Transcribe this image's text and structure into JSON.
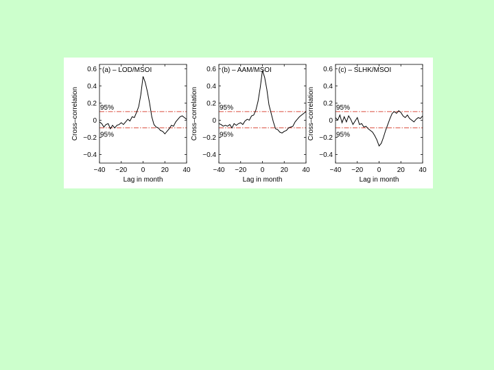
{
  "figure": {
    "background_color": "#ccffcc",
    "panel_color": "#ffffff",
    "line_color": "#000000",
    "confidence_color": "#d94a3a"
  },
  "chart_data": [
    {
      "type": "line",
      "title": "(a) – LOD/MSOI",
      "xlabel": "Lag in month",
      "ylabel": "Cross–correlation",
      "xlim": [
        -40,
        40
      ],
      "ylim": [
        -0.5,
        0.65
      ],
      "xticks": [
        -40,
        -20,
        0,
        20,
        40
      ],
      "yticks": [
        -0.4,
        -0.2,
        0,
        0.2,
        0.4,
        0.6
      ],
      "xtick_labels": [
        "−40",
        "−20",
        "0",
        "20",
        "40"
      ],
      "ytick_labels": [
        "−0.4",
        "−0.2",
        "0",
        "0.2",
        "0.4",
        "0.6"
      ],
      "grid": false,
      "confidence": {
        "upper": 0.1,
        "lower": -0.09,
        "upper_label": "95%",
        "lower_label": "95%"
      },
      "series": [
        {
          "x": [
            -40,
            -38,
            -36,
            -34,
            -32,
            -30,
            -28,
            -26,
            -24,
            -22,
            -20,
            -18,
            -16,
            -14,
            -12,
            -10,
            -8,
            -6,
            -4,
            -2,
            0,
            2,
            4,
            6,
            8,
            10,
            12,
            14,
            16,
            18,
            20,
            22,
            24,
            26,
            28,
            30,
            32,
            34,
            36,
            38,
            40
          ],
          "values": [
            -0.02,
            -0.04,
            -0.08,
            -0.05,
            -0.04,
            -0.1,
            -0.06,
            -0.09,
            -0.06,
            -0.05,
            -0.03,
            -0.05,
            -0.02,
            0.01,
            -0.01,
            0.04,
            0.03,
            0.09,
            0.16,
            0.3,
            0.51,
            0.44,
            0.33,
            0.2,
            0.04,
            -0.05,
            -0.08,
            -0.09,
            -0.12,
            -0.13,
            -0.16,
            -0.13,
            -0.1,
            -0.06,
            -0.07,
            -0.02,
            0.01,
            0.04,
            0.05,
            0.03,
            0.01
          ]
        }
      ]
    },
    {
      "type": "line",
      "title": "(b) – AAM/MSOI",
      "xlabel": "Lag in month",
      "ylabel": "Cross–correlation",
      "xlim": [
        -40,
        40
      ],
      "ylim": [
        -0.5,
        0.65
      ],
      "xticks": [
        -40,
        -20,
        0,
        20,
        40
      ],
      "yticks": [
        -0.4,
        -0.2,
        0,
        0.2,
        0.4,
        0.6
      ],
      "xtick_labels": [
        "−40",
        "−20",
        "0",
        "20",
        "40"
      ],
      "ytick_labels": [
        "−0.4",
        "−0.2",
        "0",
        "0.2",
        "0.4",
        "0.6"
      ],
      "grid": false,
      "confidence": {
        "upper": 0.1,
        "lower": -0.09,
        "upper_label": "95%",
        "lower_label": "95%"
      },
      "series": [
        {
          "x": [
            -40,
            -38,
            -36,
            -34,
            -32,
            -30,
            -28,
            -26,
            -24,
            -22,
            -20,
            -18,
            -16,
            -14,
            -12,
            -10,
            -8,
            -6,
            -4,
            -2,
            0,
            2,
            4,
            6,
            8,
            10,
            12,
            14,
            16,
            18,
            20,
            22,
            24,
            26,
            28,
            30,
            32,
            34,
            36,
            38,
            40
          ],
          "values": [
            -0.04,
            -0.05,
            -0.07,
            -0.06,
            -0.07,
            -0.05,
            -0.09,
            -0.04,
            -0.06,
            -0.04,
            -0.03,
            -0.05,
            -0.01,
            0.01,
            0.0,
            0.05,
            0.06,
            0.12,
            0.22,
            0.38,
            0.58,
            0.5,
            0.36,
            0.18,
            0.08,
            -0.02,
            -0.1,
            -0.11,
            -0.14,
            -0.15,
            -0.13,
            -0.12,
            -0.09,
            -0.08,
            -0.07,
            -0.02,
            0.01,
            0.04,
            0.06,
            0.08,
            0.1
          ]
        }
      ]
    },
    {
      "type": "line",
      "title": "(c) – SLHK/MSOI",
      "xlabel": "Lag in month",
      "ylabel": "Cross–correlation",
      "xlim": [
        -40,
        40
      ],
      "ylim": [
        -0.5,
        0.65
      ],
      "xticks": [
        -40,
        -20,
        0,
        20,
        40
      ],
      "yticks": [
        -0.4,
        -0.2,
        0,
        0.2,
        0.4,
        0.6
      ],
      "xtick_labels": [
        "−40",
        "−20",
        "0",
        "20",
        "40"
      ],
      "ytick_labels": [
        "−0.4",
        "−0.2",
        "0",
        "0.2",
        "0.4",
        "0.6"
      ],
      "grid": false,
      "confidence": {
        "upper": 0.1,
        "lower": -0.09,
        "upper_label": "95%",
        "lower_label": "95%"
      },
      "series": [
        {
          "x": [
            -40,
            -38,
            -36,
            -34,
            -32,
            -30,
            -28,
            -26,
            -24,
            -22,
            -20,
            -18,
            -16,
            -14,
            -12,
            -10,
            -8,
            -6,
            -4,
            -2,
            0,
            2,
            4,
            6,
            8,
            10,
            12,
            14,
            16,
            18,
            20,
            22,
            24,
            26,
            28,
            30,
            32,
            34,
            36,
            38,
            40
          ],
          "values": [
            0.03,
            0.0,
            0.06,
            -0.03,
            0.04,
            -0.02,
            0.05,
            0.01,
            -0.05,
            -0.01,
            0.03,
            -0.05,
            -0.04,
            -0.08,
            -0.07,
            -0.1,
            -0.12,
            -0.14,
            -0.18,
            -0.23,
            -0.3,
            -0.27,
            -0.2,
            -0.12,
            -0.05,
            0.02,
            0.08,
            0.1,
            0.08,
            0.11,
            0.09,
            0.05,
            0.03,
            0.06,
            0.02,
            0.0,
            -0.02,
            0.01,
            0.03,
            0.02,
            0.05
          ]
        }
      ]
    }
  ]
}
